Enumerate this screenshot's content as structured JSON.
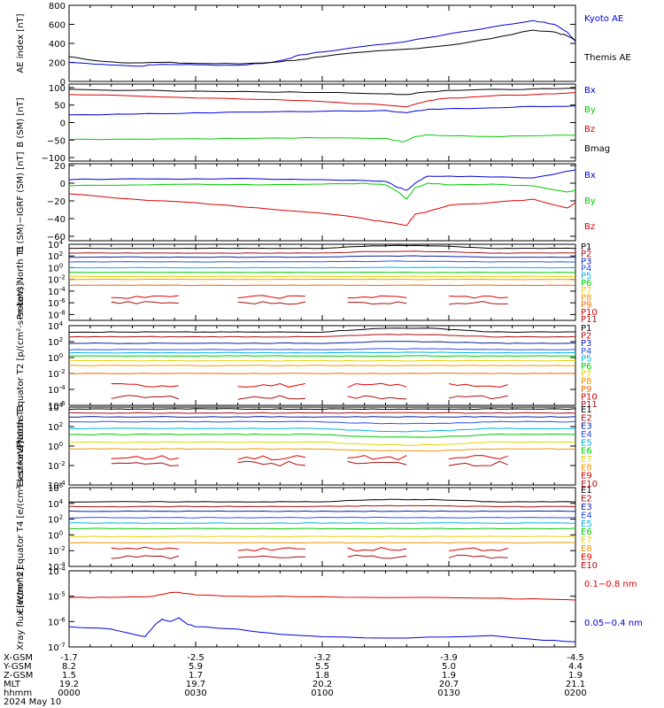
{
  "colors": {
    "black": "#000000",
    "blue": "#0000dd",
    "red": "#dd0000",
    "green": "#00cc00",
    "purple": "#7a1fa0",
    "navy": "#0a1fa0",
    "blue2": "#2a4ff0",
    "cyan": "#00b4e6",
    "teal": "#00c8a0",
    "yellow": "#e6d200",
    "orange": "#f09600",
    "orange2": "#e66e00",
    "darkred": "#aa1010"
  },
  "x_axis": {
    "labels_col": [
      "X-GSM",
      "Y-GSM",
      "Z-GSM",
      "MLT",
      "hhmm"
    ],
    "date": "2024 May 10",
    "ticks": [
      {
        "vals": [
          "-1.7",
          "8.2",
          "1.5",
          "19.2",
          "0000"
        ]
      },
      {
        "vals": [
          "-2.5",
          "5.9",
          "1.7",
          "19.7",
          "0030"
        ]
      },
      {
        "vals": [
          "-3.2",
          "5.5",
          "1.8",
          "20.2",
          "0100"
        ]
      },
      {
        "vals": [
          "-3.9",
          "5.0",
          "1.9",
          "20.7",
          "0130"
        ]
      },
      {
        "vals": [
          "-4.5",
          "4.4",
          "1.9",
          "21.1",
          "0200"
        ]
      }
    ]
  },
  "chart_data": [
    {
      "type": "line",
      "ylabel": "AE index [nT]",
      "yticks": [
        "800",
        "600",
        "400",
        "200",
        "0"
      ],
      "ylim": [
        0,
        800
      ],
      "series": [
        {
          "name": "Kyoto AE",
          "color": "blue",
          "x": [
            0,
            8,
            16,
            22,
            30,
            40,
            48,
            52,
            55,
            60,
            70,
            80,
            90,
            100,
            110,
            115,
            118,
            120
          ],
          "values": [
            200,
            180,
            160,
            180,
            175,
            170,
            200,
            240,
            280,
            310,
            370,
            420,
            500,
            570,
            640,
            600,
            520,
            420
          ]
        },
        {
          "name": "Themis AE",
          "color": "black",
          "x": [
            0,
            8,
            16,
            22,
            30,
            40,
            48,
            55,
            60,
            70,
            80,
            90,
            100,
            110,
            115,
            118,
            120
          ],
          "values": [
            260,
            210,
            195,
            200,
            190,
            185,
            200,
            230,
            260,
            310,
            340,
            380,
            450,
            540,
            520,
            480,
            430
          ]
        }
      ],
      "legend": [
        {
          "text": "Kyoto AE",
          "color": "blue"
        },
        {
          "text": "Themis AE",
          "color": "black"
        }
      ]
    },
    {
      "type": "line",
      "ylabel": "B (SM) [nT]",
      "yticks": [
        "100",
        "50",
        "0",
        "−50",
        "−100"
      ],
      "ylim": [
        -110,
        110
      ],
      "series": [
        {
          "name": "Bx",
          "color": "blue",
          "x": [
            0,
            15,
            30,
            45,
            60,
            75,
            80,
            85,
            90,
            100,
            110,
            120
          ],
          "values": [
            22,
            24,
            28,
            30,
            32,
            35,
            28,
            38,
            40,
            42,
            46,
            48
          ]
        },
        {
          "name": "By",
          "color": "green",
          "x": [
            0,
            15,
            30,
            45,
            60,
            75,
            79,
            82,
            85,
            90,
            100,
            110,
            120
          ],
          "values": [
            -48,
            -47,
            -46,
            -45,
            -44,
            -45,
            -55,
            -40,
            -35,
            -38,
            -40,
            -38,
            -36
          ]
        },
        {
          "name": "Bz",
          "color": "red",
          "x": [
            0,
            15,
            30,
            45,
            60,
            75,
            80,
            85,
            90,
            100,
            110,
            120
          ],
          "values": [
            80,
            76,
            70,
            66,
            60,
            50,
            45,
            62,
            70,
            76,
            80,
            86
          ]
        },
        {
          "name": "Bmag",
          "color": "black",
          "x": [
            0,
            15,
            30,
            45,
            60,
            75,
            80,
            85,
            90,
            100,
            110,
            120
          ],
          "values": [
            95,
            92,
            90,
            88,
            86,
            82,
            80,
            88,
            92,
            95,
            96,
            98
          ]
        }
      ],
      "legend": [
        {
          "text": "Bx",
          "color": "blue"
        },
        {
          "text": "By",
          "color": "green"
        },
        {
          "text": "Bz",
          "color": "red"
        },
        {
          "text": "Bmag",
          "color": "black"
        }
      ]
    },
    {
      "type": "line",
      "ylabel": "B (SM)−IGRF (SM) [nT]",
      "yticks": [
        "20",
        "0",
        "−20",
        "−40",
        "−60"
      ],
      "ylim": [
        -65,
        22
      ],
      "series": [
        {
          "name": "Bx",
          "color": "blue",
          "x": [
            0,
            15,
            30,
            45,
            60,
            70,
            75,
            78,
            80,
            82,
            85,
            90,
            100,
            110,
            120
          ],
          "values": [
            4,
            5,
            5,
            5,
            4,
            3,
            2,
            -5,
            -8,
            0,
            8,
            8,
            7,
            6,
            15
          ]
        },
        {
          "name": "By",
          "color": "green",
          "x": [
            0,
            15,
            30,
            45,
            60,
            70,
            75,
            78,
            80,
            82,
            85,
            90,
            100,
            110,
            118,
            120
          ],
          "values": [
            -3,
            -2,
            -1,
            -2,
            -1,
            0,
            -2,
            -10,
            -18,
            -5,
            0,
            -2,
            -1,
            -3,
            -10,
            -8
          ]
        },
        {
          "name": "Bz",
          "color": "red",
          "x": [
            0,
            15,
            30,
            45,
            60,
            70,
            75,
            80,
            82,
            85,
            90,
            100,
            110,
            118,
            120
          ],
          "values": [
            -12,
            -18,
            -22,
            -28,
            -34,
            -40,
            -44,
            -48,
            -35,
            -32,
            -25,
            -22,
            -18,
            -28,
            -22
          ]
        }
      ],
      "legend": [
        {
          "text": "Bx",
          "color": "blue"
        },
        {
          "text": "By",
          "color": "green"
        },
        {
          "text": "Bz",
          "color": "red"
        }
      ]
    },
    {
      "type": "line",
      "ylabel": "Protons North T1",
      "log": true,
      "ylim_exp": [
        -9,
        4
      ],
      "yticks": [
        {
          "e": "4"
        },
        {
          "e": "2"
        },
        {
          "e": "0"
        },
        {
          "e": "-2"
        },
        {
          "e": "-4"
        },
        {
          "e": "-6"
        },
        {
          "e": "-8"
        }
      ],
      "levels": [
        3.3,
        2.5,
        1.8,
        1.0,
        0.0,
        -0.8,
        -1.5,
        -2.0,
        -3.0,
        -5.0,
        -6.0
      ],
      "bumps": [
        0.5,
        0.3,
        0.2,
        0.1,
        0.05,
        0,
        0,
        0,
        0,
        0,
        0
      ],
      "gaps": [
        false,
        false,
        false,
        false,
        false,
        false,
        false,
        false,
        false,
        true,
        true
      ],
      "colors": [
        "black",
        "darkred",
        "navy",
        "blue2",
        "cyan",
        "green",
        "yellow",
        "orange",
        "orange2",
        "red",
        "darkred"
      ],
      "legend": [
        "P1",
        "P2",
        "P3",
        "P4",
        "P5",
        "P6",
        "P7",
        "P8",
        "P9",
        "P10",
        "P11"
      ]
    },
    {
      "type": "line",
      "ylabel": "Protons Equator T2 [p/(cm²-s-sr-keV)]",
      "log": true,
      "ylim_exp": [
        -6,
        4
      ],
      "yticks": [
        {
          "e": "4"
        },
        {
          "e": "2"
        },
        {
          "e": "0"
        },
        {
          "e": "-2"
        },
        {
          "e": "-4"
        },
        {
          "e": "-6"
        }
      ],
      "levels": [
        3.2,
        2.6,
        1.8,
        1.0,
        0.6,
        0.2,
        -0.4,
        -1.0,
        -2.0,
        -3.5,
        -5.0
      ],
      "bumps": [
        0.5,
        0.3,
        0.2,
        0.1,
        0.05,
        0,
        0,
        0,
        0,
        0,
        0
      ],
      "gaps": [
        false,
        false,
        false,
        false,
        false,
        false,
        false,
        false,
        false,
        true,
        true
      ],
      "colors": [
        "black",
        "darkred",
        "navy",
        "blue2",
        "cyan",
        "green",
        "yellow",
        "orange",
        "orange2",
        "red",
        "darkred"
      ],
      "legend": [
        "P1",
        "P2",
        "P3",
        "P4",
        "P5",
        "P6",
        "P7",
        "P8",
        "P9",
        "P10",
        "P11"
      ]
    },
    {
      "type": "line",
      "ylabel": "Electrons North T3",
      "log": true,
      "ylim_exp": [
        -4,
        4
      ],
      "yticks": [
        {
          "e": "4"
        },
        {
          "e": "2"
        },
        {
          "e": "0"
        },
        {
          "e": "-2"
        },
        {
          "e": "-4"
        }
      ],
      "levels": [
        3.8,
        3.4,
        3.0,
        2.5,
        1.8,
        1.2,
        0.4,
        -0.3,
        -1.2,
        -1.8
      ],
      "bumps": [
        0,
        0,
        0,
        -0.2,
        -0.3,
        -0.3,
        -0.3,
        -0.2,
        0,
        0
      ],
      "gaps": [
        false,
        false,
        false,
        false,
        false,
        false,
        false,
        false,
        true,
        true
      ],
      "colors": [
        "black",
        "darkred",
        "navy",
        "blue2",
        "cyan",
        "green",
        "yellow",
        "orange",
        "red",
        "darkred"
      ],
      "legend": [
        "E1",
        "E2",
        "E3",
        "E4",
        "E5",
        "E6",
        "E7",
        "E8",
        "E9",
        "E10"
      ]
    },
    {
      "type": "line",
      "ylabel": "Electrons Equator T4 [e/(cm²-s-sr-keV)]",
      "log": true,
      "ylim_exp": [
        -4,
        6
      ],
      "yticks": [
        {
          "e": "6"
        },
        {
          "e": "4"
        },
        {
          "e": "2"
        },
        {
          "e": "0"
        },
        {
          "e": "-2"
        },
        {
          "e": "-4"
        }
      ],
      "levels": [
        4.2,
        3.6,
        3.0,
        2.2,
        1.5,
        0.8,
        -0.2,
        -1.0,
        -1.8,
        -2.8
      ],
      "bumps": [
        0.3,
        0.1,
        0,
        0,
        0,
        0,
        0,
        0,
        0,
        0
      ],
      "gaps": [
        false,
        false,
        false,
        false,
        false,
        false,
        false,
        false,
        true,
        true
      ],
      "colors": [
        "black",
        "darkred",
        "navy",
        "blue2",
        "cyan",
        "green",
        "yellow",
        "orange",
        "red",
        "darkred"
      ],
      "legend": [
        "E1",
        "E2",
        "E3",
        "E4",
        "E5",
        "E6",
        "E7",
        "E8",
        "E9",
        "E10"
      ]
    },
    {
      "type": "line",
      "ylabel": "Xray flux [W/m^2]",
      "log": true,
      "ylim_exp": [
        -7,
        -4
      ],
      "yticks": [
        {
          "e": "-4"
        },
        {
          "e": "-5"
        },
        {
          "e": "-6"
        },
        {
          "e": "-7"
        }
      ],
      "series": [
        {
          "name": "0.1−0.8 nm",
          "color": "red",
          "x": [
            0,
            10,
            20,
            24,
            26,
            30,
            40,
            60,
            80,
            100,
            110,
            120
          ],
          "values": [
            -5.05,
            -5.05,
            -5.0,
            -4.85,
            -4.85,
            -4.95,
            -5.0,
            -5.02,
            -5.05,
            -5.08,
            -5.1,
            -5.15
          ]
        },
        {
          "name": "0.05−0.4 nm",
          "color": "blue",
          "x": [
            0,
            10,
            18,
            20,
            22,
            24,
            26,
            28,
            30,
            40,
            50,
            60,
            80,
            100,
            110,
            120
          ],
          "values": [
            -6.2,
            -6.3,
            -6.6,
            -6.2,
            -5.9,
            -6.0,
            -5.85,
            -6.1,
            -6.2,
            -6.3,
            -6.5,
            -6.6,
            -6.65,
            -6.55,
            -6.7,
            -6.8
          ]
        }
      ],
      "legend": [
        {
          "text": "0.1−0.8 nm",
          "color": "red"
        },
        {
          "text": "0.05−0.4 nm",
          "color": "blue"
        }
      ]
    }
  ]
}
